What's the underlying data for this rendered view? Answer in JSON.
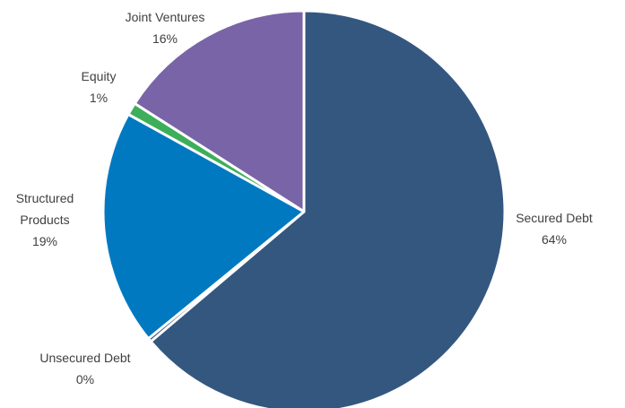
{
  "chart_data": {
    "type": "pie",
    "title": "",
    "start_angle_deg": 0,
    "direction": "clockwise",
    "slices": [
      {
        "name": "Secured Debt",
        "value": 64,
        "label_value": "64%",
        "color": "#34577F"
      },
      {
        "name": "Unsecured Debt",
        "value": 0.3,
        "label_value": "0%",
        "color": "#2B4A6F"
      },
      {
        "name": "Structured Products",
        "value": 19,
        "label_value": "19%",
        "color": "#0079C1"
      },
      {
        "name": "Equity",
        "value": 1,
        "label_value": "1%",
        "color": "#3DAE5A"
      },
      {
        "name": "Joint Ventures",
        "value": 16,
        "label_value": "16%",
        "color": "#7A64A8"
      }
    ],
    "legend": "none"
  }
}
